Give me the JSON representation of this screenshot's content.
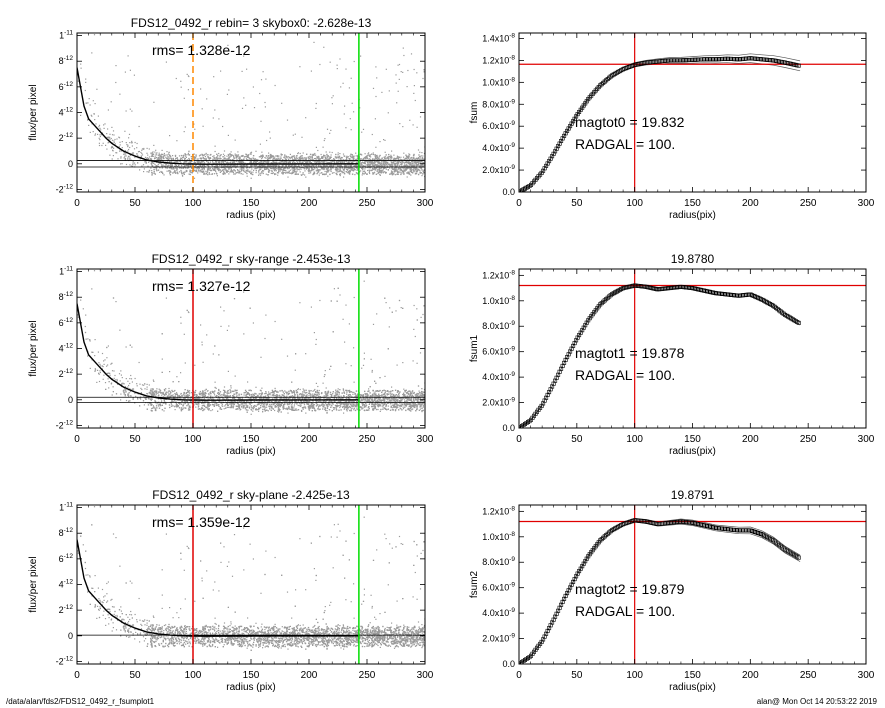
{
  "footer": {
    "path": "/data/alan/fds2/FDS12_0492_r_fsumplot1",
    "stamp": "alan@  Mon Oct 14 20:53:22 2019"
  },
  "colors": {
    "red": "#e00000",
    "green": "#00dd00",
    "orange": "#ff8800",
    "scatter": "#9a9a9a",
    "profile": "#000000"
  },
  "chart_data": [
    {
      "type": "scatter",
      "title": "FDS12_0492_r rebin= 3    skybox0: -2.628e-13",
      "annotation": "rms= 1.328e-12",
      "xlabel": "radius (pix)",
      "ylabel": "flux/per pixel",
      "xlim": [
        0,
        300
      ],
      "ylim": [
        -2.2e-12,
        1.02e-11
      ],
      "xticks": [
        0,
        50,
        100,
        150,
        200,
        250,
        300
      ],
      "yticks": [
        {
          "v": -2e-12,
          "m": "-2",
          "e": "-12"
        },
        {
          "v": 0,
          "m": "0",
          "e": ""
        },
        {
          "v": 2e-12,
          "m": "2",
          "e": "-12"
        },
        {
          "v": 4e-12,
          "m": "4",
          "e": "-12"
        },
        {
          "v": 6e-12,
          "m": "6",
          "e": "-12"
        },
        {
          "v": 8e-12,
          "m": "8",
          "e": "-12"
        },
        {
          "v": 1e-11,
          "m": "1",
          "e": "-11"
        }
      ],
      "vlines": [
        {
          "x": 100,
          "color": "orange",
          "dashed": true
        },
        {
          "x": 243,
          "color": "green"
        }
      ],
      "hlines": [
        2.5e-13,
        -2.5e-13
      ],
      "profile": {
        "x": [
          0,
          3,
          6,
          10,
          15,
          20,
          25,
          30,
          40,
          50,
          60,
          70,
          80,
          90,
          100,
          110,
          120,
          150,
          200,
          243
        ],
        "y": [
          7.5e-12,
          6e-12,
          4.5e-12,
          3.5e-12,
          3e-12,
          2.5e-12,
          2e-12,
          1.6e-12,
          1e-12,
          6e-13,
          3e-13,
          1.5e-13,
          5e-14,
          0.0,
          -2e-14,
          -3e-14,
          -3e-14,
          -2e-14,
          -1e-14,
          0.0
        ]
      }
    },
    {
      "type": "line",
      "title": "",
      "xlabel": "radius(pix)",
      "ylabel": "fsum",
      "xlim": [
        0,
        300
      ],
      "ylim": [
        0,
        1.45e-08
      ],
      "xticks": [
        0,
        50,
        100,
        150,
        200,
        250,
        300
      ],
      "yticks": [
        {
          "v": 0,
          "m": "0.0",
          "e": ""
        },
        {
          "v": 2e-09,
          "m": "2.0x10",
          "e": "-9"
        },
        {
          "v": 4e-09,
          "m": "4.0x10",
          "e": "-9"
        },
        {
          "v": 6e-09,
          "m": "6.0x10",
          "e": "-9"
        },
        {
          "v": 8e-09,
          "m": "8.0x10",
          "e": "-9"
        },
        {
          "v": 1e-08,
          "m": "1.0x10",
          "e": "-8"
        },
        {
          "v": 1.2e-08,
          "m": "1.2x10",
          "e": "-8"
        },
        {
          "v": 1.4e-08,
          "m": "1.4x10",
          "e": "-8"
        }
      ],
      "annotations": [
        "magtot0 =  19.832",
        "RADGAL =    100."
      ],
      "vline": 100,
      "hline": 1.165e-08,
      "series": {
        "x": [
          0,
          10,
          20,
          30,
          40,
          50,
          60,
          70,
          80,
          90,
          100,
          110,
          120,
          130,
          140,
          150,
          160,
          170,
          180,
          190,
          200,
          210,
          220,
          230,
          243
        ],
        "y": [
          0,
          6e-10,
          1.8e-09,
          3.5e-09,
          5.3e-09,
          7e-09,
          8.5e-09,
          9.7e-09,
          1.06e-08,
          1.12e-08,
          1.16e-08,
          1.18e-08,
          1.19e-08,
          1.2e-08,
          1.2e-08,
          1.205e-08,
          1.21e-08,
          1.21e-08,
          1.215e-08,
          1.21e-08,
          1.22e-08,
          1.21e-08,
          1.2e-08,
          1.18e-08,
          1.15e-08
        ]
      },
      "envelope": 4.5e-10
    },
    {
      "type": "scatter",
      "title": "FDS12_0492_r sky-range -2.453e-13",
      "annotation": "rms= 1.327e-12",
      "xlabel": "radius (pix)",
      "ylabel": "flux/per pixel",
      "xlim": [
        0,
        300
      ],
      "ylim": [
        -2.2e-12,
        1.02e-11
      ],
      "xticks": [
        0,
        50,
        100,
        150,
        200,
        250,
        300
      ],
      "yticks": [
        {
          "v": -2e-12,
          "m": "-2",
          "e": "-12"
        },
        {
          "v": 0,
          "m": "0",
          "e": ""
        },
        {
          "v": 2e-12,
          "m": "2",
          "e": "-12"
        },
        {
          "v": 4e-12,
          "m": "4",
          "e": "-12"
        },
        {
          "v": 6e-12,
          "m": "6",
          "e": "-12"
        },
        {
          "v": 8e-12,
          "m": "8",
          "e": "-12"
        },
        {
          "v": 1e-11,
          "m": "1",
          "e": "-11"
        }
      ],
      "vlines": [
        {
          "x": 100,
          "color": "red"
        },
        {
          "x": 243,
          "color": "green"
        }
      ],
      "hlines": [
        2e-13,
        -2e-13
      ],
      "profile": {
        "x": [
          0,
          3,
          6,
          10,
          15,
          20,
          25,
          30,
          40,
          50,
          60,
          70,
          80,
          90,
          100,
          110,
          120,
          150,
          200,
          243
        ],
        "y": [
          7.5e-12,
          6e-12,
          4.5e-12,
          3.5e-12,
          3e-12,
          2.5e-12,
          2e-12,
          1.6e-12,
          1e-12,
          6e-13,
          3e-13,
          1.5e-13,
          5e-14,
          0.0,
          -2e-14,
          -3e-14,
          -3e-14,
          -2e-14,
          -1e-14,
          0.0
        ]
      }
    },
    {
      "type": "line",
      "title": "19.8780",
      "xlabel": "radius(pix)",
      "ylabel": "fsum1",
      "xlim": [
        0,
        300
      ],
      "ylim": [
        0,
        1.25e-08
      ],
      "xticks": [
        0,
        50,
        100,
        150,
        200,
        250,
        300
      ],
      "yticks": [
        {
          "v": 0,
          "m": "0.0",
          "e": ""
        },
        {
          "v": 2e-09,
          "m": "2.0x10",
          "e": "-9"
        },
        {
          "v": 4e-09,
          "m": "4.0x10",
          "e": "-9"
        },
        {
          "v": 6e-09,
          "m": "6.0x10",
          "e": "-9"
        },
        {
          "v": 8e-09,
          "m": "8.0x10",
          "e": "-9"
        },
        {
          "v": 1e-08,
          "m": "1.0x10",
          "e": "-8"
        },
        {
          "v": 1.2e-08,
          "m": "1.2x10",
          "e": "-8"
        }
      ],
      "annotations": [
        "magtot1 =  19.878",
        "RADGAL =    100."
      ],
      "vline": 100,
      "hline": 1.12e-08,
      "series": {
        "x": [
          0,
          10,
          20,
          30,
          40,
          50,
          60,
          70,
          80,
          90,
          100,
          110,
          120,
          130,
          140,
          150,
          160,
          170,
          180,
          190,
          200,
          210,
          220,
          230,
          243
        ],
        "y": [
          0,
          6e-10,
          1.8e-09,
          3.5e-09,
          5.3e-09,
          7e-09,
          8.5e-09,
          9.7e-09,
          1.05e-08,
          1.1e-08,
          1.12e-08,
          1.11e-08,
          1.09e-08,
          1.1e-08,
          1.11e-08,
          1.1e-08,
          1.08e-08,
          1.06e-08,
          1.05e-08,
          1.04e-08,
          1.05e-08,
          1.01e-08,
          9.6e-09,
          8.9e-09,
          8.2e-09
        ]
      },
      "envelope": 1.5e-10
    },
    {
      "type": "scatter",
      "title": "FDS12_0492_r sky-plane -2.425e-13",
      "annotation": "rms= 1.359e-12",
      "xlabel": "radius (pix)",
      "ylabel": "flux/per pixel",
      "xlim": [
        0,
        300
      ],
      "ylim": [
        -2.2e-12,
        1.02e-11
      ],
      "xticks": [
        0,
        50,
        100,
        150,
        200,
        250,
        300
      ],
      "yticks": [
        {
          "v": -2e-12,
          "m": "-2",
          "e": "-12"
        },
        {
          "v": 0,
          "m": "0",
          "e": ""
        },
        {
          "v": 2e-12,
          "m": "2",
          "e": "-12"
        },
        {
          "v": 4e-12,
          "m": "4",
          "e": "-12"
        },
        {
          "v": 6e-12,
          "m": "6",
          "e": "-12"
        },
        {
          "v": 8e-12,
          "m": "8",
          "e": "-12"
        },
        {
          "v": 1e-11,
          "m": "1",
          "e": "-11"
        }
      ],
      "vlines": [
        {
          "x": 100,
          "color": "red"
        },
        {
          "x": 243,
          "color": "green"
        }
      ],
      "hlines": [
        5e-14
      ],
      "profile": {
        "x": [
          0,
          3,
          6,
          10,
          15,
          20,
          25,
          30,
          40,
          50,
          60,
          70,
          80,
          90,
          100,
          110,
          120,
          150,
          200,
          243
        ],
        "y": [
          7.5e-12,
          6e-12,
          4.5e-12,
          3.5e-12,
          3e-12,
          2.5e-12,
          2e-12,
          1.6e-12,
          1e-12,
          6e-13,
          3e-13,
          1.5e-13,
          5e-14,
          0.0,
          -2e-14,
          -3e-14,
          -3e-14,
          -2e-14,
          -1e-14,
          0.0
        ]
      }
    },
    {
      "type": "line",
      "title": "19.8791",
      "xlabel": "radius(pix)",
      "ylabel": "fsum2",
      "xlim": [
        0,
        300
      ],
      "ylim": [
        0,
        1.25e-08
      ],
      "xticks": [
        0,
        50,
        100,
        150,
        200,
        250,
        300
      ],
      "yticks": [
        {
          "v": 0,
          "m": "0.0",
          "e": ""
        },
        {
          "v": 2e-09,
          "m": "2.0x10",
          "e": "-9"
        },
        {
          "v": 4e-09,
          "m": "4.0x10",
          "e": "-9"
        },
        {
          "v": 6e-09,
          "m": "6.0x10",
          "e": "-9"
        },
        {
          "v": 8e-09,
          "m": "8.0x10",
          "e": "-9"
        },
        {
          "v": 1e-08,
          "m": "1.0x10",
          "e": "-8"
        },
        {
          "v": 1.2e-08,
          "m": "1.2x10",
          "e": "-8"
        }
      ],
      "annotations": [
        "magtot2 =  19.879",
        "RADGAL =    100."
      ],
      "vline": 100,
      "hline": 1.12e-08,
      "series": {
        "x": [
          0,
          10,
          20,
          30,
          40,
          50,
          60,
          70,
          80,
          90,
          100,
          110,
          120,
          130,
          140,
          150,
          160,
          170,
          180,
          190,
          200,
          210,
          220,
          230,
          243
        ],
        "y": [
          0,
          6e-10,
          1.8e-09,
          3.5e-09,
          5.3e-09,
          7e-09,
          8.5e-09,
          9.7e-09,
          1.05e-08,
          1.1e-08,
          1.13e-08,
          1.12e-08,
          1.1e-08,
          1.11e-08,
          1.12e-08,
          1.11e-08,
          1.09e-08,
          1.07e-08,
          1.06e-08,
          1.05e-08,
          1.05e-08,
          1.02e-08,
          9.7e-09,
          9e-09,
          8.3e-09
        ]
      },
      "envelope": 3.5e-10
    }
  ]
}
